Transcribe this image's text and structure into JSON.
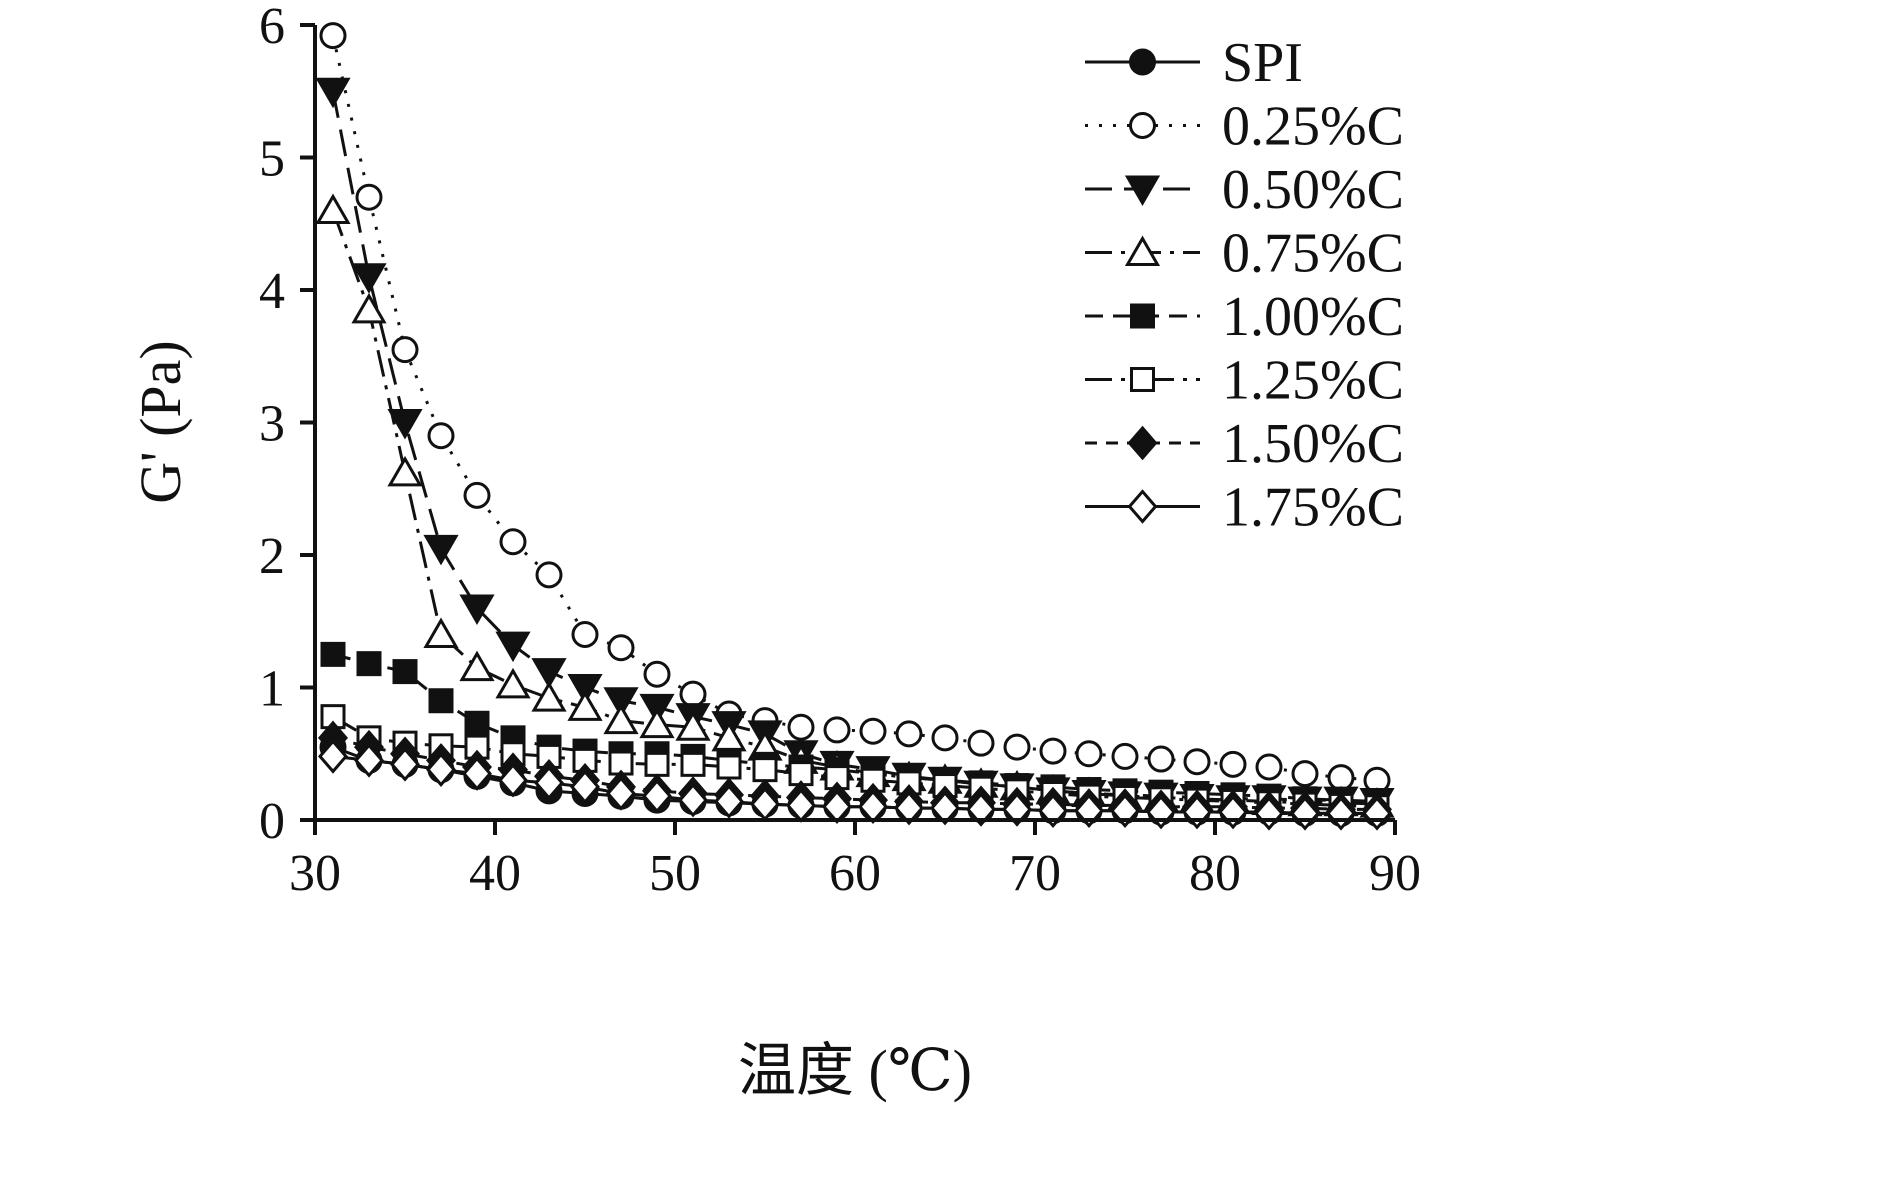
{
  "figure": {
    "background": "#ffffff",
    "foreground": "#111111"
  },
  "chart_data": {
    "type": "line",
    "title": "",
    "xlabel": "温度 (℃)",
    "ylabel": "G' (Pa)",
    "xlim": [
      30,
      90
    ],
    "ylim": [
      0,
      6
    ],
    "x_ticks": [
      30,
      40,
      50,
      60,
      70,
      80,
      90
    ],
    "y_ticks": [
      0,
      1,
      2,
      3,
      4,
      5,
      6
    ],
    "grid": false,
    "legend_position": "top-right",
    "x": [
      31,
      33,
      35,
      37,
      39,
      41,
      43,
      45,
      47,
      49,
      51,
      53,
      55,
      57,
      59,
      61,
      63,
      65,
      67,
      69,
      71,
      73,
      75,
      77,
      79,
      81,
      83,
      85,
      87,
      89
    ],
    "series": [
      {
        "name": "SPI",
        "marker": "circle-filled",
        "line": "solid",
        "values": [
          0.55,
          0.45,
          0.42,
          0.38,
          0.33,
          0.28,
          0.22,
          0.2,
          0.18,
          0.15,
          0.14,
          0.13,
          0.12,
          0.11,
          0.1,
          0.1,
          0.09,
          0.09,
          0.08,
          0.08,
          0.07,
          0.07,
          0.07,
          0.06,
          0.06,
          0.06,
          0.06,
          0.05,
          0.05,
          0.05
        ]
      },
      {
        "name": "0.25%C",
        "marker": "circle-open",
        "line": "dotted",
        "values": [
          5.92,
          4.7,
          3.55,
          2.9,
          2.45,
          2.1,
          1.85,
          1.4,
          1.3,
          1.1,
          0.95,
          0.8,
          0.75,
          0.7,
          0.68,
          0.67,
          0.65,
          0.62,
          0.58,
          0.55,
          0.52,
          0.5,
          0.48,
          0.46,
          0.44,
          0.42,
          0.4,
          0.35,
          0.32,
          0.3
        ]
      },
      {
        "name": "0.50%C",
        "marker": "triangle-down-filled",
        "line": "dashed-long",
        "values": [
          5.5,
          4.1,
          3.0,
          2.05,
          1.6,
          1.32,
          1.12,
          1.0,
          0.9,
          0.85,
          0.78,
          0.72,
          0.65,
          0.5,
          0.42,
          0.38,
          0.33,
          0.3,
          0.27,
          0.25,
          0.22,
          0.2,
          0.19,
          0.18,
          0.17,
          0.16,
          0.16,
          0.15,
          0.15,
          0.14
        ]
      },
      {
        "name": "0.75%C",
        "marker": "triangle-up-open",
        "line": "dash-dot",
        "values": [
          4.6,
          3.85,
          2.62,
          1.4,
          1.15,
          1.02,
          0.92,
          0.85,
          0.75,
          0.72,
          0.7,
          0.62,
          0.55,
          0.45,
          0.4,
          0.35,
          0.32,
          0.3,
          0.27,
          0.25,
          0.22,
          0.2,
          0.18,
          0.17,
          0.16,
          0.15,
          0.14,
          0.13,
          0.13,
          0.12
        ]
      },
      {
        "name": "1.00%C",
        "marker": "square-filled",
        "line": "dashed-medium",
        "values": [
          1.25,
          1.18,
          1.12,
          0.9,
          0.73,
          0.62,
          0.55,
          0.52,
          0.5,
          0.5,
          0.48,
          0.45,
          0.42,
          0.4,
          0.38,
          0.35,
          0.32,
          0.3,
          0.28,
          0.26,
          0.25,
          0.23,
          0.22,
          0.21,
          0.2,
          0.19,
          0.18,
          0.16,
          0.15,
          0.13
        ]
      },
      {
        "name": "1.25%C",
        "marker": "square-open",
        "line": "dash-dot-dot",
        "values": [
          0.78,
          0.62,
          0.58,
          0.56,
          0.55,
          0.5,
          0.48,
          0.45,
          0.43,
          0.42,
          0.42,
          0.4,
          0.38,
          0.35,
          0.32,
          0.3,
          0.28,
          0.26,
          0.24,
          0.22,
          0.2,
          0.18,
          0.17,
          0.16,
          0.15,
          0.14,
          0.13,
          0.12,
          0.11,
          0.1
        ]
      },
      {
        "name": "1.50%C",
        "marker": "diamond-filled",
        "line": "dashed-short",
        "values": [
          0.62,
          0.55,
          0.5,
          0.45,
          0.4,
          0.38,
          0.33,
          0.3,
          0.25,
          0.22,
          0.2,
          0.19,
          0.18,
          0.17,
          0.16,
          0.15,
          0.14,
          0.13,
          0.13,
          0.12,
          0.12,
          0.11,
          0.11,
          0.1,
          0.1,
          0.1,
          0.09,
          0.09,
          0.08,
          0.08
        ]
      },
      {
        "name": "1.75%C",
        "marker": "diamond-open",
        "line": "solid",
        "values": [
          0.48,
          0.45,
          0.42,
          0.38,
          0.35,
          0.3,
          0.28,
          0.25,
          0.2,
          0.18,
          0.15,
          0.14,
          0.12,
          0.11,
          0.1,
          0.1,
          0.09,
          0.09,
          0.08,
          0.08,
          0.07,
          0.07,
          0.07,
          0.06,
          0.06,
          0.06,
          0.05,
          0.05,
          0.05,
          0.05
        ]
      }
    ]
  }
}
